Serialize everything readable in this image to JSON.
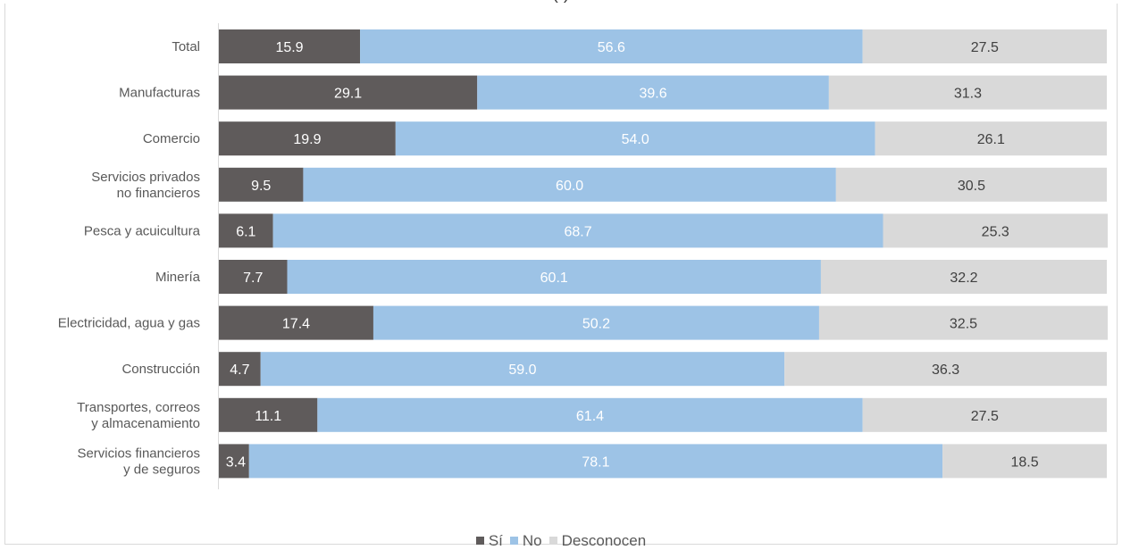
{
  "title_fragment": "(                   )",
  "chart_data": {
    "type": "bar",
    "orientation": "horizontal",
    "stacked": "100%",
    "title": "",
    "xlabel": "",
    "ylabel": "",
    "xlim": [
      0,
      100
    ],
    "grid": false,
    "legend_position": "bottom",
    "categories": [
      [
        "Total"
      ],
      [
        "Manufacturas"
      ],
      [
        "Comercio"
      ],
      [
        "Servicios privados",
        "no financieros"
      ],
      [
        "Pesca y acuicultura"
      ],
      [
        "Minería"
      ],
      [
        "Electricidad, agua y gas"
      ],
      [
        "Construcción"
      ],
      [
        "Transportes, correos",
        "y almacenamiento"
      ],
      [
        "Servicios financieros",
        "y de seguros"
      ]
    ],
    "series": [
      {
        "name": "Sí",
        "color": "#5f5b5b",
        "label_color": "#ffffff",
        "values": [
          15.9,
          29.1,
          19.9,
          9.5,
          6.1,
          7.7,
          17.4,
          4.7,
          11.1,
          3.4
        ]
      },
      {
        "name": "No",
        "color": "#9dc3e6",
        "label_color": "#ffffff",
        "values": [
          56.6,
          39.6,
          54.0,
          60.0,
          68.7,
          60.1,
          50.2,
          59.0,
          61.4,
          78.1
        ]
      },
      {
        "name": "Desconocen",
        "color": "#d9d9d9",
        "label_color": "#404040",
        "values": [
          27.5,
          31.3,
          26.1,
          30.5,
          25.3,
          32.2,
          32.5,
          36.3,
          27.5,
          18.5
        ]
      }
    ]
  }
}
